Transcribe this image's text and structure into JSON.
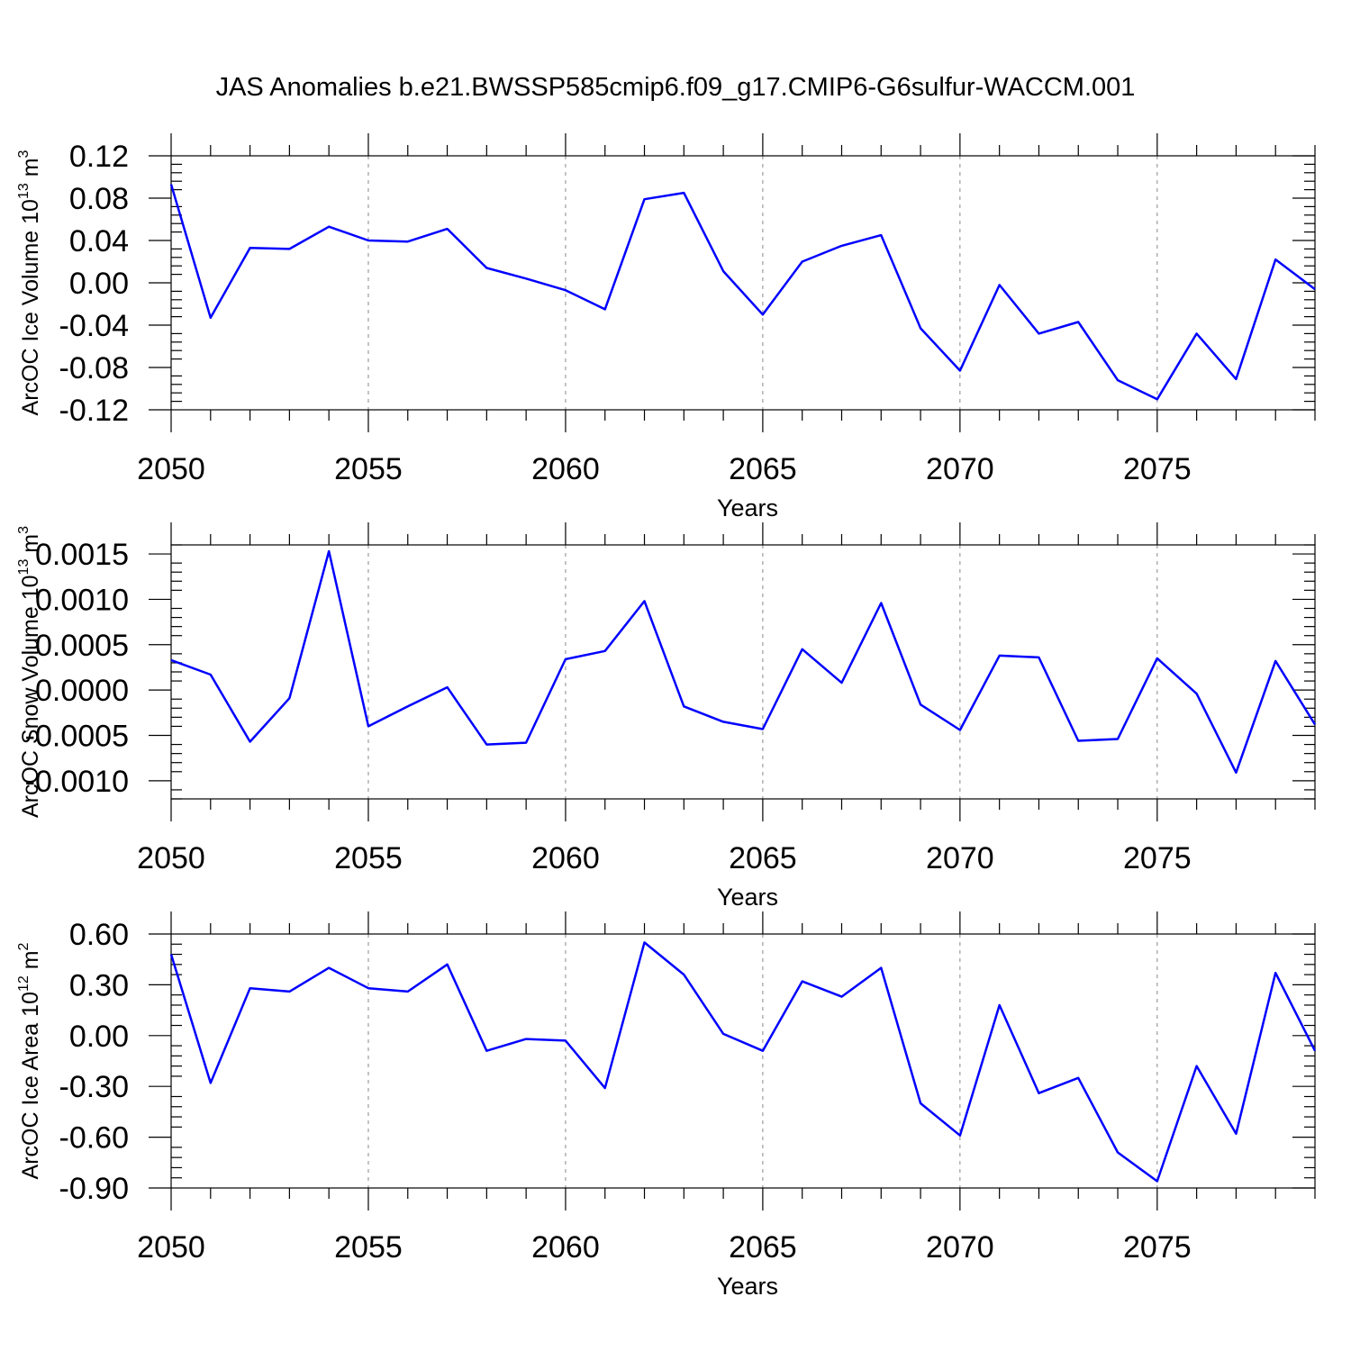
{
  "title": "JAS Anomalies b.e21.BWSSP585cmip6.f09_g17.CMIP6-G6sulfur-WACCM.001",
  "colors": {
    "series": "#0000ff",
    "grid": "#888888",
    "axis": "#000000"
  },
  "chart_data": [
    {
      "type": "line",
      "ylabel": "ArcOC Ice Volume 10",
      "ylabel_exp": "13",
      "ylabel_unit": " m",
      "ylabel_unit_exp": "3",
      "xlabel": "Years",
      "xlim": [
        2050,
        2079
      ],
      "ylim": [
        -0.12,
        0.12
      ],
      "yticks": [
        -0.12,
        -0.08,
        -0.04,
        0.0,
        0.04,
        0.08,
        0.12
      ],
      "ytick_labels": [
        "-0.12",
        "-0.08",
        "-0.04",
        "0.00",
        "0.04",
        "0.08",
        "0.12"
      ],
      "xticks": [
        2050,
        2055,
        2060,
        2065,
        2070,
        2075
      ],
      "xtick_labels": [
        "2050",
        "2055",
        "2060",
        "2065",
        "2070",
        "2075"
      ],
      "grid": "vertical dashed at major x ticks",
      "x": [
        2050,
        2051,
        2052,
        2053,
        2054,
        2055,
        2056,
        2057,
        2058,
        2059,
        2060,
        2061,
        2062,
        2063,
        2064,
        2065,
        2066,
        2067,
        2068,
        2069,
        2070,
        2071,
        2072,
        2073,
        2074,
        2075,
        2076,
        2077,
        2078,
        2079
      ],
      "values": [
        0.093,
        -0.033,
        0.033,
        0.032,
        0.053,
        0.04,
        0.039,
        0.051,
        0.014,
        0.004,
        -0.007,
        -0.025,
        0.079,
        0.085,
        0.011,
        -0.03,
        0.02,
        0.035,
        0.045,
        -0.043,
        -0.083,
        -0.002,
        -0.048,
        -0.037,
        -0.092,
        -0.11,
        -0.048,
        -0.091,
        0.022,
        -0.006
      ]
    },
    {
      "type": "line",
      "ylabel": "ArcOC Snow Volume 10",
      "ylabel_exp": "13",
      "ylabel_unit": " m",
      "ylabel_unit_exp": "3",
      "xlabel": "Years",
      "xlim": [
        2050,
        2079
      ],
      "ylim": [
        -0.0012,
        0.0016
      ],
      "yticks": [
        -0.001,
        -0.0005,
        0.0,
        0.0005,
        0.001,
        0.0015
      ],
      "ytick_labels": [
        "-0.0010",
        "-0.0005",
        "0.0000",
        "0.0005",
        "0.0010",
        "0.0015"
      ],
      "xticks": [
        2050,
        2055,
        2060,
        2065,
        2070,
        2075
      ],
      "xtick_labels": [
        "2050",
        "2055",
        "2060",
        "2065",
        "2070",
        "2075"
      ],
      "grid": "vertical dashed at major x ticks",
      "x": [
        2050,
        2051,
        2052,
        2053,
        2054,
        2055,
        2056,
        2057,
        2058,
        2059,
        2060,
        2061,
        2062,
        2063,
        2064,
        2065,
        2066,
        2067,
        2068,
        2069,
        2070,
        2071,
        2072,
        2073,
        2074,
        2075,
        2076,
        2077,
        2078,
        2079
      ],
      "values": [
        0.00033,
        0.00017,
        -0.00057,
        -9e-05,
        0.00153,
        -0.0004,
        -0.00018,
        3e-05,
        -0.0006,
        -0.00058,
        0.00034,
        0.00043,
        0.00098,
        -0.00018,
        -0.00035,
        -0.00043,
        0.00045,
        8e-05,
        0.00096,
        -0.00016,
        -0.00044,
        0.00038,
        0.00036,
        -0.00056,
        -0.00054,
        0.00035,
        -4e-05,
        -0.00091,
        0.00032,
        -0.00038
      ]
    },
    {
      "type": "line",
      "ylabel": "ArcOC Ice Area 10",
      "ylabel_exp": "12",
      "ylabel_unit": " m",
      "ylabel_unit_exp": "2",
      "xlabel": "Years",
      "xlim": [
        2050,
        2079
      ],
      "ylim": [
        -0.9,
        0.6
      ],
      "yticks": [
        -0.9,
        -0.6,
        -0.3,
        0.0,
        0.3,
        0.6
      ],
      "ytick_labels": [
        "-0.90",
        "-0.60",
        "-0.30",
        "0.00",
        "0.30",
        "0.60"
      ],
      "xticks": [
        2050,
        2055,
        2060,
        2065,
        2070,
        2075
      ],
      "xtick_labels": [
        "2050",
        "2055",
        "2060",
        "2065",
        "2070",
        "2075"
      ],
      "grid": "vertical dashed at major x ticks",
      "x": [
        2050,
        2051,
        2052,
        2053,
        2054,
        2055,
        2056,
        2057,
        2058,
        2059,
        2060,
        2061,
        2062,
        2063,
        2064,
        2065,
        2066,
        2067,
        2068,
        2069,
        2070,
        2071,
        2072,
        2073,
        2074,
        2075,
        2076,
        2077,
        2078,
        2079
      ],
      "values": [
        0.48,
        -0.28,
        0.28,
        0.26,
        0.4,
        0.28,
        0.26,
        0.42,
        -0.09,
        -0.02,
        -0.03,
        -0.31,
        0.55,
        0.36,
        0.01,
        -0.09,
        0.32,
        0.23,
        0.4,
        -0.4,
        -0.59,
        0.18,
        -0.34,
        -0.25,
        -0.69,
        -0.86,
        -0.18,
        -0.58,
        0.37,
        -0.09
      ]
    }
  ]
}
